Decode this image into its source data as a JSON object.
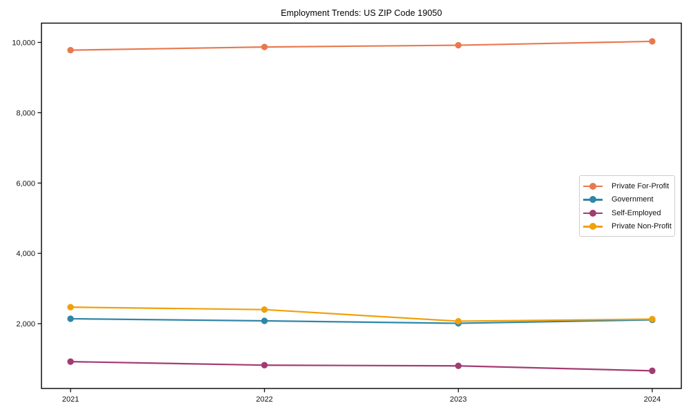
{
  "chart_data": {
    "type": "line",
    "title": "Employment Trends: US ZIP Code 19050",
    "xlabel": "",
    "ylabel": "",
    "x": [
      2021,
      2022,
      2023,
      2024
    ],
    "x_tick_labels": [
      "2021",
      "2022",
      "2023",
      "2024"
    ],
    "y_ticks": [
      2000,
      4000,
      6000,
      8000,
      10000
    ],
    "y_tick_labels": [
      "2,000",
      "4,000",
      "6,000",
      "8,000",
      "10,000"
    ],
    "xlim": [
      2020.85,
      2024.15
    ],
    "ylim": [
      157,
      10549
    ],
    "grid": false,
    "legend": {
      "position": "center-right",
      "border_color": "#cccccc",
      "background": "#ffffff"
    },
    "series": [
      {
        "name": "Private For-Profit",
        "color": "#E8794E",
        "values": [
          9780,
          9870,
          9920,
          10030
        ]
      },
      {
        "name": "Government",
        "color": "#2F86A8",
        "values": [
          2140,
          2080,
          2010,
          2110
        ]
      },
      {
        "name": "Self-Employed",
        "color": "#A23B72",
        "values": [
          920,
          820,
          800,
          660
        ]
      },
      {
        "name": "Private Non-Profit",
        "color": "#F0A00A",
        "values": [
          2470,
          2400,
          2070,
          2130
        ]
      }
    ],
    "axis_color": "#000000",
    "text_color": "#111111"
  }
}
